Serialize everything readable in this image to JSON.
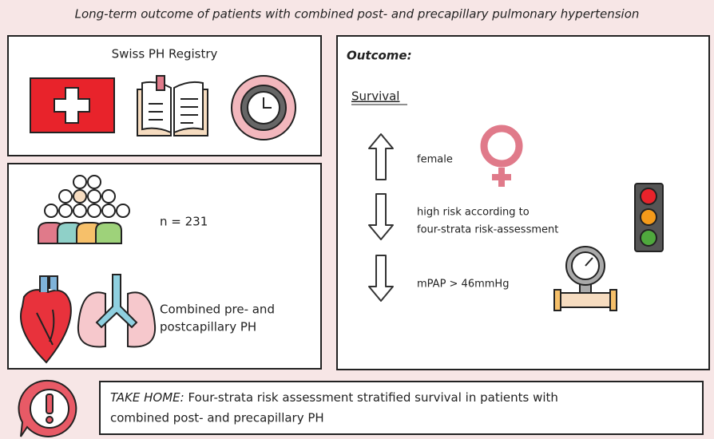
{
  "title": "Long-term outcome of patients with combined post- and precapillary pulmonary hypertension",
  "registry": {
    "label": "Swiss PH Registry"
  },
  "cohort": {
    "n": "n = 231",
    "phenotype": [
      "Combined pre- and",
      "postcapillary PH"
    ]
  },
  "outcome": {
    "heading": "Outcome:",
    "subheading": "Survival",
    "factors": [
      {
        "label": [
          "female"
        ]
      },
      {
        "label": [
          "high risk according to",
          "four-strata risk-assessment"
        ]
      },
      {
        "label": [
          "mPAP > 46mmHg"
        ]
      }
    ]
  },
  "take_home": {
    "label": "TAKE HOME:",
    "text": [
      "Four-strata risk assessment stratified survival in patients with",
      "combined post- and precapillary PH"
    ]
  }
}
